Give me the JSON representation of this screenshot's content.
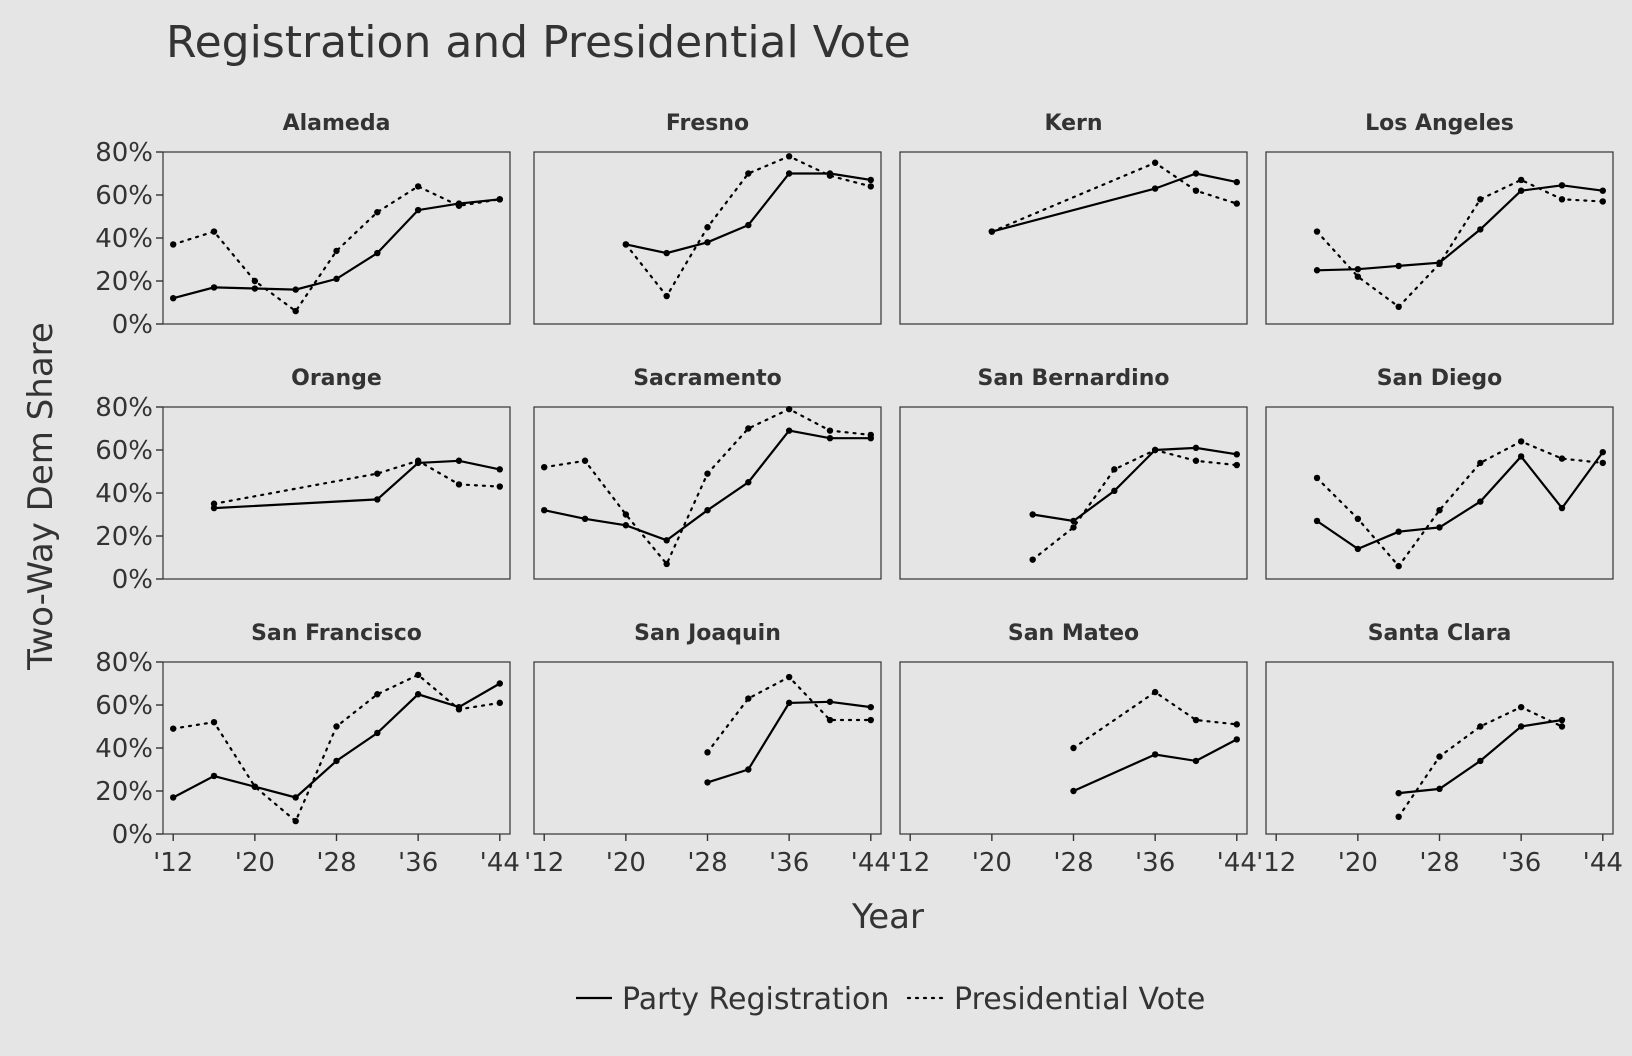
{
  "chart_data": {
    "type": "line",
    "title": "Registration and Presidential Vote",
    "xlabel": "Year",
    "ylabel": "Two-Way Dem Share",
    "xlim": [
      1911,
      1945
    ],
    "ylim": [
      0,
      0.8
    ],
    "x_ticks": [
      {
        "value": 1912,
        "label": "'12"
      },
      {
        "value": 1920,
        "label": "'20"
      },
      {
        "value": 1928,
        "label": "'28"
      },
      {
        "value": 1936,
        "label": "'36"
      },
      {
        "value": 1944,
        "label": "'44"
      }
    ],
    "y_ticks": [
      {
        "value": 0,
        "label": "0%"
      },
      {
        "value": 0.2,
        "label": "20%"
      },
      {
        "value": 0.4,
        "label": "40%"
      },
      {
        "value": 0.6,
        "label": "60%"
      },
      {
        "value": 0.8,
        "label": "80%"
      }
    ],
    "grid": false,
    "legend": {
      "position": "bottom",
      "entries": [
        {
          "name": "Party Registration",
          "style": "solid"
        },
        {
          "name": "Presidential Vote",
          "style": "dotted"
        }
      ]
    },
    "colors": {
      "background": "#e5e5e5",
      "line": "#000000",
      "text": "#333333"
    },
    "facets": [
      {
        "name": "Alameda",
        "registration": [
          [
            1912,
            0.12
          ],
          [
            1916,
            0.17
          ],
          [
            1920,
            0.165
          ],
          [
            1924,
            0.16
          ],
          [
            1928,
            0.21
          ],
          [
            1932,
            0.33
          ],
          [
            1936,
            0.53
          ],
          [
            1940,
            0.56
          ],
          [
            1944,
            0.58
          ]
        ],
        "vote": [
          [
            1912,
            0.37
          ],
          [
            1916,
            0.43
          ],
          [
            1920,
            0.2
          ],
          [
            1924,
            0.06
          ],
          [
            1928,
            0.34
          ],
          [
            1932,
            0.52
          ],
          [
            1936,
            0.64
          ],
          [
            1940,
            0.55
          ],
          [
            1944,
            0.58
          ]
        ]
      },
      {
        "name": "Fresno",
        "registration": [
          [
            1920,
            0.37
          ],
          [
            1924,
            0.33
          ],
          [
            1928,
            0.38
          ],
          [
            1932,
            0.46
          ],
          [
            1936,
            0.7
          ],
          [
            1940,
            0.7
          ],
          [
            1944,
            0.67
          ]
        ],
        "vote": [
          [
            1920,
            0.37
          ],
          [
            1924,
            0.13
          ],
          [
            1928,
            0.45
          ],
          [
            1932,
            0.7
          ],
          [
            1936,
            0.78
          ],
          [
            1940,
            0.69
          ],
          [
            1944,
            0.64
          ]
        ]
      },
      {
        "name": "Kern",
        "registration": [
          [
            1920,
            0.43
          ],
          [
            1936,
            0.63
          ],
          [
            1940,
            0.7
          ],
          [
            1944,
            0.66
          ]
        ],
        "vote": [
          [
            1920,
            0.43
          ],
          [
            1936,
            0.75
          ],
          [
            1940,
            0.62
          ],
          [
            1944,
            0.56
          ]
        ]
      },
      {
        "name": "Los Angeles",
        "registration": [
          [
            1916,
            0.25
          ],
          [
            1920,
            0.255
          ],
          [
            1924,
            0.27
          ],
          [
            1928,
            0.285
          ],
          [
            1932,
            0.44
          ],
          [
            1936,
            0.62
          ],
          [
            1940,
            0.645
          ],
          [
            1944,
            0.62
          ]
        ],
        "vote": [
          [
            1916,
            0.43
          ],
          [
            1920,
            0.22
          ],
          [
            1924,
            0.08
          ],
          [
            1928,
            0.28
          ],
          [
            1932,
            0.58
          ],
          [
            1936,
            0.67
          ],
          [
            1940,
            0.58
          ],
          [
            1944,
            0.57
          ]
        ]
      },
      {
        "name": "Orange",
        "registration": [
          [
            1916,
            0.33
          ],
          [
            1932,
            0.37
          ],
          [
            1936,
            0.54
          ],
          [
            1940,
            0.55
          ],
          [
            1944,
            0.51
          ]
        ],
        "vote": [
          [
            1916,
            0.35
          ],
          [
            1932,
            0.49
          ],
          [
            1936,
            0.55
          ],
          [
            1940,
            0.44
          ],
          [
            1944,
            0.43
          ]
        ]
      },
      {
        "name": "Sacramento",
        "registration": [
          [
            1912,
            0.32
          ],
          [
            1916,
            0.28
          ],
          [
            1920,
            0.25
          ],
          [
            1924,
            0.18
          ],
          [
            1928,
            0.32
          ],
          [
            1932,
            0.45
          ],
          [
            1936,
            0.69
          ],
          [
            1940,
            0.655
          ],
          [
            1944,
            0.655
          ]
        ],
        "vote": [
          [
            1912,
            0.52
          ],
          [
            1916,
            0.55
          ],
          [
            1920,
            0.3
          ],
          [
            1924,
            0.07
          ],
          [
            1928,
            0.49
          ],
          [
            1932,
            0.7
          ],
          [
            1936,
            0.79
          ],
          [
            1940,
            0.69
          ],
          [
            1944,
            0.67
          ]
        ]
      },
      {
        "name": "San Bernardino",
        "registration": [
          [
            1924,
            0.3
          ],
          [
            1928,
            0.27
          ],
          [
            1932,
            0.41
          ],
          [
            1936,
            0.6
          ],
          [
            1940,
            0.61
          ],
          [
            1944,
            0.58
          ]
        ],
        "vote": [
          [
            1924,
            0.09
          ],
          [
            1928,
            0.24
          ],
          [
            1932,
            0.51
          ],
          [
            1936,
            0.6
          ],
          [
            1940,
            0.55
          ],
          [
            1944,
            0.53
          ]
        ]
      },
      {
        "name": "San Diego",
        "registration": [
          [
            1916,
            0.27
          ],
          [
            1920,
            0.14
          ],
          [
            1924,
            0.22
          ],
          [
            1928,
            0.24
          ],
          [
            1932,
            0.36
          ],
          [
            1936,
            0.57
          ],
          [
            1940,
            0.33
          ],
          [
            1944,
            0.59
          ]
        ],
        "vote": [
          [
            1916,
            0.47
          ],
          [
            1920,
            0.28
          ],
          [
            1924,
            0.06
          ],
          [
            1928,
            0.32
          ],
          [
            1932,
            0.54
          ],
          [
            1936,
            0.64
          ],
          [
            1940,
            0.56
          ],
          [
            1944,
            0.54
          ]
        ]
      },
      {
        "name": "San Francisco",
        "registration": [
          [
            1912,
            0.17
          ],
          [
            1916,
            0.27
          ],
          [
            1920,
            0.22
          ],
          [
            1924,
            0.17
          ],
          [
            1928,
            0.34
          ],
          [
            1932,
            0.47
          ],
          [
            1936,
            0.65
          ],
          [
            1940,
            0.59
          ],
          [
            1944,
            0.7
          ]
        ],
        "vote": [
          [
            1912,
            0.49
          ],
          [
            1916,
            0.52
          ],
          [
            1920,
            0.22
          ],
          [
            1924,
            0.06
          ],
          [
            1928,
            0.5
          ],
          [
            1932,
            0.65
          ],
          [
            1936,
            0.74
          ],
          [
            1940,
            0.58
          ],
          [
            1944,
            0.61
          ]
        ]
      },
      {
        "name": "San Joaquin",
        "registration": [
          [
            1928,
            0.24
          ],
          [
            1932,
            0.3
          ],
          [
            1936,
            0.61
          ],
          [
            1940,
            0.615
          ],
          [
            1944,
            0.59
          ]
        ],
        "vote": [
          [
            1928,
            0.38
          ],
          [
            1932,
            0.63
          ],
          [
            1936,
            0.73
          ],
          [
            1940,
            0.53
          ],
          [
            1944,
            0.53
          ]
        ]
      },
      {
        "name": "San Mateo",
        "registration": [
          [
            1928,
            0.2
          ],
          [
            1936,
            0.37
          ],
          [
            1940,
            0.34
          ],
          [
            1944,
            0.44
          ]
        ],
        "vote": [
          [
            1928,
            0.4
          ],
          [
            1936,
            0.66
          ],
          [
            1940,
            0.53
          ],
          [
            1944,
            0.51
          ]
        ]
      },
      {
        "name": "Santa Clara",
        "registration": [
          [
            1924,
            0.19
          ],
          [
            1928,
            0.21
          ],
          [
            1932,
            0.34
          ],
          [
            1936,
            0.5
          ],
          [
            1940,
            0.53
          ]
        ],
        "vote": [
          [
            1924,
            0.08
          ],
          [
            1928,
            0.36
          ],
          [
            1932,
            0.5
          ],
          [
            1936,
            0.59
          ],
          [
            1940,
            0.5
          ]
        ]
      }
    ]
  }
}
